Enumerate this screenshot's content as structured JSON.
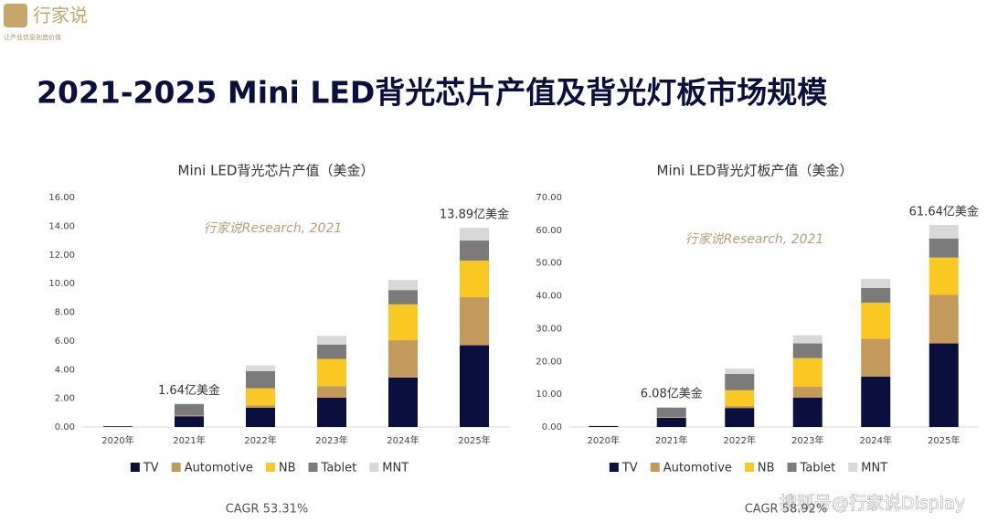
{
  "header": {
    "logo": "行家说",
    "tagline": "让产业信息创造价值",
    "title": "2021-2025 Mini LED背光芯片产值及背光灯板市场规模"
  },
  "chart_data": [
    {
      "type": "bar",
      "stacked": true,
      "title": "Mini LED背光芯片产值（美金）",
      "watermark": "行家说Research, 2021",
      "note": "CAGR 53.31%",
      "categories": [
        "2020年",
        "2021年",
        "2022年",
        "2023年",
        "2024年",
        "2025年"
      ],
      "series": [
        {
          "name": "TV",
          "color": "#0b0f3d",
          "values": [
            0.05,
            0.75,
            1.35,
            2.05,
            3.45,
            5.7
          ]
        },
        {
          "name": "Automotive",
          "color": "#c49a5c",
          "values": [
            0,
            0.02,
            0.15,
            0.8,
            2.6,
            3.35
          ]
        },
        {
          "name": "NB",
          "color": "#f9c823",
          "values": [
            0,
            0.02,
            1.2,
            1.9,
            2.5,
            2.55
          ]
        },
        {
          "name": "Tablet",
          "color": "#7b7b7b",
          "values": [
            0,
            0.8,
            1.2,
            1.0,
            1.0,
            1.4
          ]
        },
        {
          "name": "MNT",
          "color": "#d8d8d8",
          "values": [
            0,
            0.05,
            0.4,
            0.6,
            0.7,
            0.89
          ]
        }
      ],
      "annotations": [
        {
          "text": "1.64亿美金",
          "x": "2021年"
        },
        {
          "text": "13.89亿美金",
          "x": "2025年"
        }
      ],
      "ylim": [
        0,
        16
      ],
      "yticks": [
        {
          "value": 0,
          "label": "0.00"
        },
        {
          "value": 2,
          "label": "2.00"
        },
        {
          "value": 4,
          "label": "4.00"
        },
        {
          "value": 6,
          "label": "6.00"
        },
        {
          "value": 8,
          "label": "8.00"
        },
        {
          "value": 10,
          "label": "10.00"
        },
        {
          "value": 12,
          "label": "12.00"
        },
        {
          "value": 14,
          "label": "14.00"
        },
        {
          "value": 16,
          "label": "16.00"
        }
      ],
      "legend": "bottom"
    },
    {
      "type": "bar",
      "stacked": true,
      "title": "Mini LED背光灯板产值（美金）",
      "watermark": "行家说Research, 2021",
      "note": "CAGR 58.92%",
      "categories": [
        "2020年",
        "2021年",
        "2022年",
        "2023年",
        "2024年",
        "2025年"
      ],
      "series": [
        {
          "name": "TV",
          "color": "#0b0f3d",
          "values": [
            0.3,
            2.8,
            5.8,
            9.0,
            15.4,
            25.5
          ]
        },
        {
          "name": "Automotive",
          "color": "#c49a5c",
          "values": [
            0,
            0.1,
            0.6,
            3.3,
            11.5,
            14.8
          ]
        },
        {
          "name": "NB",
          "color": "#f9c823",
          "values": [
            0,
            0.1,
            4.8,
            8.7,
            11.0,
            11.4
          ]
        },
        {
          "name": "Tablet",
          "color": "#7b7b7b",
          "values": [
            0,
            2.9,
            5.0,
            4.5,
            4.5,
            5.8
          ]
        },
        {
          "name": "MNT",
          "color": "#d8d8d8",
          "values": [
            0,
            0.18,
            1.6,
            2.5,
            2.8,
            4.14
          ]
        }
      ],
      "annotations": [
        {
          "text": "6.08亿美金",
          "x": "2021年"
        },
        {
          "text": "61.64亿美金",
          "x": "2025年"
        }
      ],
      "ylim": [
        0,
        70
      ],
      "yticks": [
        {
          "value": 0,
          "label": "0.00"
        },
        {
          "value": 10,
          "label": "10.00"
        },
        {
          "value": 20,
          "label": "20.00"
        },
        {
          "value": 30,
          "label": "30.00"
        },
        {
          "value": 40,
          "label": "40.00"
        },
        {
          "value": 50,
          "label": "50.00"
        },
        {
          "value": 60,
          "label": "60.00"
        },
        {
          "value": 70,
          "label": "70.00"
        }
      ],
      "legend": "bottom"
    }
  ],
  "footer": {
    "watermark": "搜狐号@行家说Display"
  }
}
